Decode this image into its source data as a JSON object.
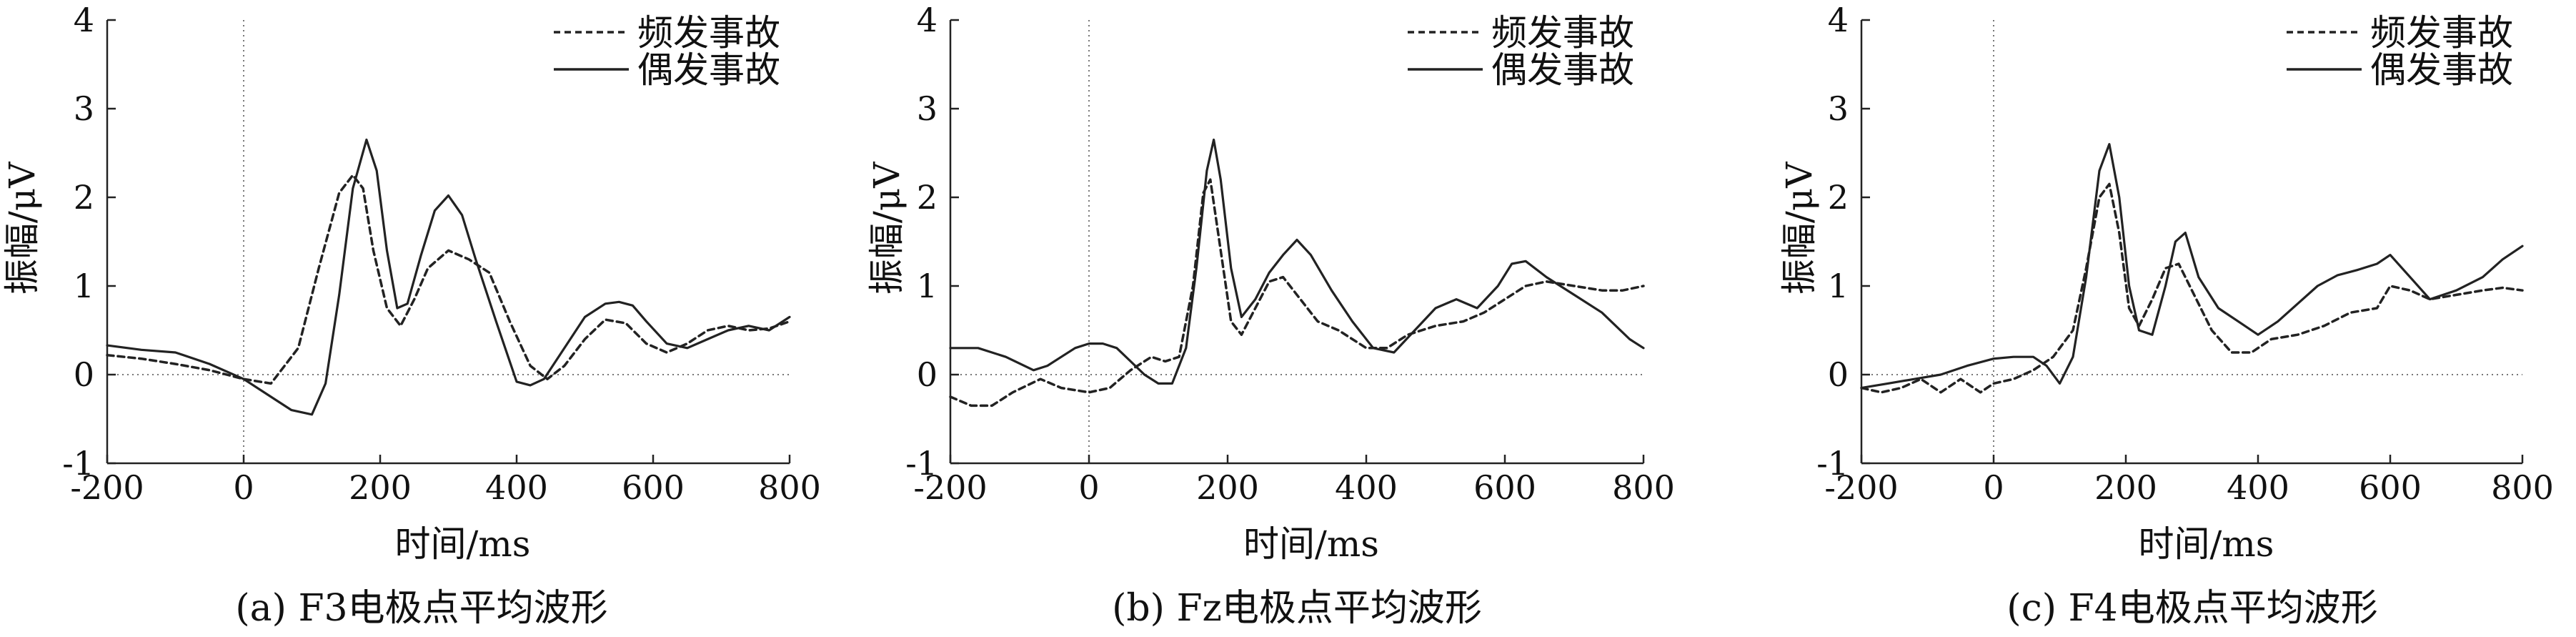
{
  "chart_data": [
    {
      "type": "line",
      "caption": "(a) F3电极点平均波形",
      "xlabel": "时间/ms",
      "ylabel": "振幅/μV",
      "xlim": [
        -200,
        800
      ],
      "ylim": [
        -1,
        4
      ],
      "xticks": [
        "-200",
        "0",
        "200",
        "400",
        "600",
        "800"
      ],
      "yticks": [
        "-1",
        "0",
        "1",
        "2",
        "3",
        "4"
      ],
      "legend_position": "top-right",
      "series": [
        {
          "name": "频发事故",
          "style": "dashed",
          "x": [
            -200,
            -150,
            -100,
            -50,
            0,
            40,
            80,
            110,
            140,
            160,
            175,
            190,
            210,
            230,
            250,
            270,
            300,
            330,
            360,
            390,
            420,
            445,
            470,
            500,
            530,
            560,
            590,
            620,
            650,
            680,
            710,
            740,
            770,
            800
          ],
          "y": [
            0.22,
            0.18,
            0.12,
            0.05,
            -0.05,
            -0.1,
            0.3,
            1.2,
            2.05,
            2.25,
            2.1,
            1.4,
            0.75,
            0.55,
            0.85,
            1.2,
            1.4,
            1.3,
            1.15,
            0.6,
            0.1,
            -0.05,
            0.1,
            0.4,
            0.62,
            0.58,
            0.35,
            0.25,
            0.35,
            0.5,
            0.55,
            0.5,
            0.52,
            0.6
          ]
        },
        {
          "name": "偶发事故",
          "style": "solid",
          "x": [
            -200,
            -150,
            -100,
            -50,
            0,
            40,
            70,
            100,
            120,
            140,
            160,
            180,
            195,
            210,
            225,
            240,
            260,
            280,
            300,
            320,
            340,
            370,
            400,
            420,
            440,
            470,
            500,
            530,
            550,
            570,
            590,
            620,
            650,
            680,
            710,
            740,
            770,
            800
          ],
          "y": [
            0.33,
            0.28,
            0.25,
            0.12,
            -0.05,
            -0.25,
            -0.4,
            -0.45,
            -0.1,
            0.9,
            2.1,
            2.65,
            2.3,
            1.4,
            0.75,
            0.8,
            1.35,
            1.85,
            2.02,
            1.8,
            1.3,
            0.6,
            -0.08,
            -0.12,
            -0.05,
            0.3,
            0.65,
            0.8,
            0.82,
            0.78,
            0.6,
            0.35,
            0.3,
            0.4,
            0.5,
            0.55,
            0.5,
            0.65
          ]
        }
      ]
    },
    {
      "type": "line",
      "caption": "(b) Fz电极点平均波形",
      "xlabel": "时间/ms",
      "ylabel": "振幅/μV",
      "xlim": [
        -200,
        800
      ],
      "ylim": [
        -1,
        4
      ],
      "xticks": [
        "-200",
        "0",
        "200",
        "400",
        "600",
        "800"
      ],
      "yticks": [
        "-1",
        "0",
        "1",
        "2",
        "3",
        "4"
      ],
      "legend_position": "top-right",
      "series": [
        {
          "name": "频发事故",
          "style": "dashed",
          "x": [
            -200,
            -170,
            -140,
            -110,
            -70,
            -40,
            0,
            30,
            60,
            90,
            110,
            130,
            150,
            165,
            175,
            190,
            205,
            220,
            240,
            260,
            280,
            300,
            330,
            360,
            400,
            430,
            460,
            500,
            540,
            570,
            600,
            630,
            660,
            700,
            740,
            770,
            800
          ],
          "y": [
            -0.25,
            -0.35,
            -0.35,
            -0.2,
            -0.05,
            -0.15,
            -0.2,
            -0.15,
            0.05,
            0.2,
            0.15,
            0.2,
            1.0,
            2.05,
            2.2,
            1.4,
            0.6,
            0.45,
            0.75,
            1.05,
            1.1,
            0.9,
            0.6,
            0.5,
            0.3,
            0.3,
            0.45,
            0.55,
            0.6,
            0.7,
            0.85,
            1.0,
            1.05,
            1.0,
            0.95,
            0.95,
            1.0
          ]
        },
        {
          "name": "偶发事故",
          "style": "solid",
          "x": [
            -200,
            -160,
            -120,
            -80,
            -60,
            -40,
            -20,
            0,
            20,
            40,
            60,
            80,
            100,
            120,
            140,
            155,
            170,
            180,
            190,
            205,
            220,
            240,
            260,
            280,
            300,
            320,
            350,
            380,
            410,
            440,
            470,
            500,
            530,
            560,
            590,
            610,
            630,
            660,
            700,
            740,
            780,
            800
          ],
          "y": [
            0.3,
            0.3,
            0.2,
            0.05,
            0.1,
            0.2,
            0.3,
            0.35,
            0.35,
            0.3,
            0.15,
            0.0,
            -0.1,
            -0.1,
            0.3,
            1.2,
            2.3,
            2.65,
            2.2,
            1.2,
            0.65,
            0.85,
            1.15,
            1.35,
            1.52,
            1.35,
            0.95,
            0.6,
            0.3,
            0.25,
            0.5,
            0.75,
            0.85,
            0.75,
            1.0,
            1.25,
            1.28,
            1.1,
            0.9,
            0.7,
            0.4,
            0.3
          ]
        }
      ]
    },
    {
      "type": "line",
      "caption": "(c) F4电极点平均波形",
      "xlabel": "时间/ms",
      "ylabel": "振幅/μV",
      "xlim": [
        -200,
        800
      ],
      "ylim": [
        -1,
        4
      ],
      "xticks": [
        "-200",
        "0",
        "200",
        "400",
        "600",
        "800"
      ],
      "yticks": [
        "-1",
        "0",
        "1",
        "2",
        "3",
        "4"
      ],
      "legend_position": "top-right",
      "series": [
        {
          "name": "频发事故",
          "style": "dashed",
          "x": [
            -200,
            -170,
            -140,
            -110,
            -80,
            -50,
            -20,
            0,
            30,
            60,
            90,
            120,
            140,
            160,
            175,
            190,
            205,
            220,
            240,
            260,
            280,
            300,
            330,
            360,
            390,
            420,
            460,
            500,
            540,
            580,
            600,
            630,
            660,
            700,
            740,
            770,
            800
          ],
          "y": [
            -0.15,
            -0.2,
            -0.15,
            -0.05,
            -0.2,
            -0.05,
            -0.2,
            -0.1,
            -0.05,
            0.05,
            0.2,
            0.5,
            1.2,
            2.0,
            2.15,
            1.6,
            0.75,
            0.55,
            0.85,
            1.2,
            1.25,
            0.95,
            0.5,
            0.25,
            0.25,
            0.4,
            0.45,
            0.55,
            0.7,
            0.75,
            1.0,
            0.95,
            0.85,
            0.9,
            0.95,
            0.98,
            0.95
          ]
        },
        {
          "name": "偶发事故",
          "style": "solid",
          "x": [
            -200,
            -160,
            -120,
            -80,
            -40,
            0,
            30,
            60,
            80,
            100,
            120,
            140,
            160,
            175,
            190,
            205,
            220,
            240,
            260,
            275,
            290,
            310,
            340,
            370,
            400,
            430,
            460,
            490,
            520,
            550,
            580,
            600,
            630,
            660,
            700,
            740,
            770,
            800
          ],
          "y": [
            -0.15,
            -0.1,
            -0.05,
            0.0,
            0.1,
            0.18,
            0.2,
            0.2,
            0.1,
            -0.1,
            0.2,
            1.1,
            2.3,
            2.6,
            2.0,
            1.0,
            0.5,
            0.45,
            1.0,
            1.5,
            1.6,
            1.1,
            0.75,
            0.6,
            0.45,
            0.6,
            0.8,
            1.0,
            1.12,
            1.18,
            1.25,
            1.35,
            1.1,
            0.85,
            0.95,
            1.1,
            1.3,
            1.45
          ]
        }
      ]
    }
  ]
}
